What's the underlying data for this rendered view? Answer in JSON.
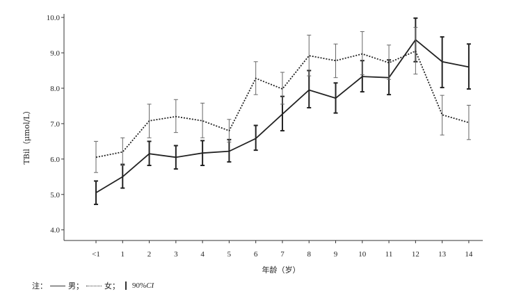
{
  "chart_data": {
    "type": "line",
    "title": "",
    "xlabel": "年龄（岁）",
    "ylabel": "TBil（μmol/L）",
    "categories": [
      "<1",
      "1",
      "2",
      "3",
      "4",
      "5",
      "6",
      "7",
      "8",
      "9",
      "10",
      "11",
      "12",
      "13",
      "14"
    ],
    "y_ticks": [
      "4.0",
      "5.0",
      "6.0",
      "7.0",
      "8.0",
      "9.0",
      "10.0"
    ],
    "ylim": [
      3.7,
      10.1
    ],
    "grid": false,
    "series": [
      {
        "name": "男",
        "style": "solid",
        "color": "#333333",
        "values": [
          5.05,
          5.5,
          6.15,
          6.05,
          6.17,
          6.22,
          6.58,
          7.27,
          7.95,
          7.72,
          8.33,
          8.3,
          9.37,
          8.75,
          8.6
        ],
        "ci_low": [
          4.72,
          5.18,
          5.82,
          5.72,
          5.82,
          5.92,
          6.25,
          6.8,
          7.45,
          7.3,
          7.9,
          7.82,
          8.75,
          8.02,
          7.98
        ],
        "ci_high": [
          5.38,
          5.85,
          6.5,
          6.38,
          6.52,
          6.55,
          6.95,
          7.77,
          8.5,
          8.15,
          8.78,
          8.8,
          9.98,
          9.45,
          9.25
        ]
      },
      {
        "name": "女",
        "style": "dotted",
        "color": "#333333",
        "values": [
          6.05,
          6.2,
          7.08,
          7.2,
          7.08,
          6.8,
          8.28,
          7.98,
          8.92,
          8.78,
          8.97,
          8.72,
          9.05,
          7.25,
          7.03
        ],
        "ci_low": [
          5.62,
          5.82,
          6.6,
          6.75,
          6.6,
          6.48,
          7.82,
          7.55,
          8.35,
          8.3,
          8.38,
          8.25,
          8.4,
          6.68,
          6.55
        ],
        "ci_high": [
          6.5,
          6.6,
          7.55,
          7.68,
          7.58,
          7.12,
          8.75,
          8.45,
          9.5,
          9.25,
          9.6,
          9.22,
          9.72,
          7.8,
          7.52
        ]
      }
    ]
  },
  "note": {
    "prefix": "注：",
    "male_label": "男；",
    "female_label": "女；",
    "ci_label_number": "90%",
    "ci_label_italic": "CI"
  }
}
